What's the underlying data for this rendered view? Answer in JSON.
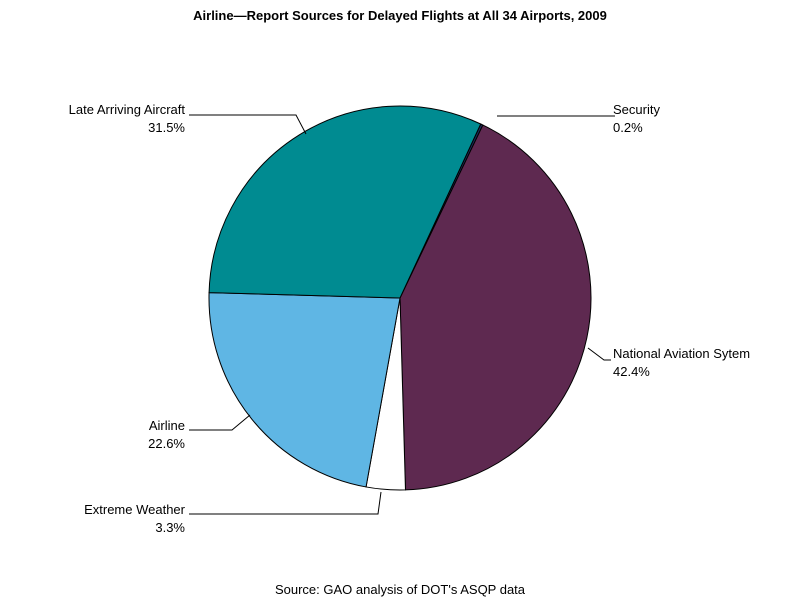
{
  "chart_data": {
    "type": "pie",
    "title": "Airline—Report Sources for Delayed Flights at All 34 Airports, 2009",
    "footnote": "Source: GAO analysis of DOT's ASQP data",
    "slices": [
      {
        "label": "Security",
        "value": 0.2,
        "value_label": "0.2%",
        "color": "#1a2a5a"
      },
      {
        "label": "National Aviation Sytem",
        "value": 42.4,
        "value_label": "42.4%",
        "color": "#5e2950"
      },
      {
        "label": "Extreme Weather",
        "value": 3.3,
        "value_label": "3.3%",
        "color": "#ffffff"
      },
      {
        "label": "Airline",
        "value": 22.6,
        "value_label": "22.6%",
        "color": "#5fb6e4"
      },
      {
        "label": "Late Arriving Aircraft",
        "value": 31.5,
        "value_label": "31.5%",
        "color": "#008b91"
      }
    ],
    "start_angle_from_top_deg": 25
  }
}
